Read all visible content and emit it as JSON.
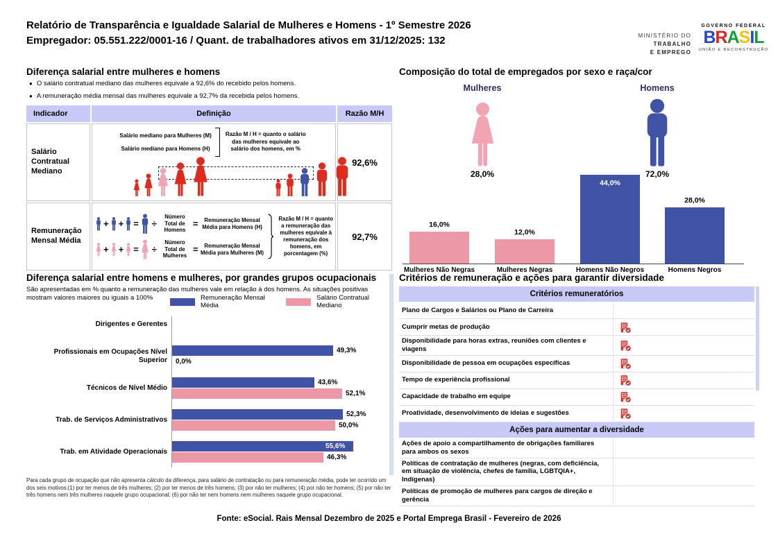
{
  "header": {
    "title_line1": "Relatório de Transparência e Igualdade Salarial de Mulheres e Homens - 1º Semestre 2026",
    "title_line2": "Empregador: 05.551.222/0001-16 / Quant. de trabalhadores ativos em 31/12/2025: 132",
    "ministry": {
      "line1": "MINISTÉRIO DO",
      "line2": "TRABALHO",
      "line3": "E EMPREGO"
    },
    "gov": {
      "top": "GOVERNO FEDERAL",
      "brand": "BRASIL",
      "bottom": "UNIÃO E RECONSTRUÇÃO"
    }
  },
  "salary_diff": {
    "title": "Diferença salarial entre mulheres e homens",
    "bullets": [
      "O salário contratual mediano das mulheres equivale a 92,6% do recebido pelos homens.",
      "A remuneração média mensal das mulheres equivale a 92,7% da recebida pelos homens."
    ],
    "table": {
      "headers": [
        "Indicador",
        "Definição",
        "Razão M/H"
      ],
      "row1": {
        "indicator": "Salário Contratual Mediano",
        "def_line1": "Salário mediano para Mulheres (M)",
        "def_line2": "Salário mediano para Homens (H)",
        "note": "Razão M / H = quanto o salário das mulheres equivale ao salário dos homens, em %",
        "ratio": "92,6%"
      },
      "row2": {
        "indicator": "Remuneração Mensal Média",
        "men_divisor": "Número Total de Homens",
        "men_result": "Remuneração Mensal Média para Homens (H)",
        "women_divisor": "Número Total de Mulheres",
        "women_result": "Remuneração Mensal Média para Mulheres (M)",
        "note": "Razão M / H = quanto a remuneração das mulheres equivale à remuneração dos homens, em porcentagem (%)",
        "ratio": "92,7%"
      }
    }
  },
  "composition": {
    "title": "Composição do total de empregados por sexo e raça/cor",
    "pictograms": [
      {
        "label": "Mulheres",
        "value": "28,0%"
      },
      {
        "label": "Homens",
        "value": "72,0%"
      }
    ]
  },
  "occupational": {
    "title": "Diferença salarial entre homens e mulheres, por grandes grupos ocupacionais",
    "subtitle": "São apresentadas em % quanto a remuneração das mulheres vale em relação à dos homens. As situações positivas mostram valores maiores ou iguais a 100%",
    "footnote": "Para cada grupo de ocupação que não apresenta cálculo da diferença, para salário de contratação ou para remuneração média, pode ter ocorrido um dos seis motivos:(1) por ter menos de três mulheres; (2) por ter menos de três homens; (3) por não ter mulheres; (4) por não ter homens; (5) por não ter três homens nem três mulheres naquele grupo ocupacional; (6) por não ter nem homens nem mulheres naquele grupo ocupacional."
  },
  "chart_data": [
    {
      "type": "bar",
      "title": "Composição do total de empregados por sexo e raça/cor",
      "categories": [
        "Mulheres Não Negras",
        "Mulheres Negras",
        "Homens Não Negros",
        "Homens Negros"
      ],
      "values": [
        16.0,
        12.0,
        44.0,
        28.0
      ],
      "labels": [
        "16,0%",
        "12,0%",
        "44,0%",
        "28,0%"
      ],
      "colors": [
        "pink",
        "pink",
        "blue",
        "blue"
      ],
      "label_inside": [
        false,
        false,
        true,
        false
      ],
      "ylim": [
        0,
        45
      ],
      "unit": "%",
      "grid": false,
      "extra_totals": {
        "Mulheres": 28.0,
        "Homens": 72.0
      }
    },
    {
      "type": "bar",
      "orientation": "horizontal",
      "title": "Diferença salarial entre homens e mulheres, por grandes grupos ocupacionais",
      "categories": [
        "Dirigentes e Gerentes",
        "Profissionais em Ocupações Nível Superior",
        "Técnicos de Nível Médio",
        "Trab. de Serviços Administrativos",
        "Trab. em Atividade Operacionais"
      ],
      "series": [
        {
          "name": "Remuneração Mensal Média",
          "color": "blue",
          "values": [
            null,
            49.3,
            43.6,
            52.3,
            55.6
          ],
          "labels": [
            "",
            "49,3%",
            "43,6%",
            "52,3%",
            "55,6%"
          ],
          "label_inside": [
            false,
            false,
            false,
            false,
            true
          ]
        },
        {
          "name": "Salário Contratual Mediano",
          "color": "pink",
          "values": [
            null,
            0.0,
            52.1,
            50.0,
            46.3
          ],
          "labels": [
            "",
            "0,0%",
            "52,1%",
            "50,0%",
            "46,3%"
          ],
          "label_inside": [
            false,
            false,
            false,
            false,
            false
          ]
        }
      ],
      "xlim": [
        0,
        60
      ],
      "unit": "%",
      "grid": false,
      "legend_position": "top"
    }
  ],
  "criteria": {
    "title": "Critérios de remuneração e ações para garantir diversidade",
    "sections": [
      {
        "header": "Critérios remuneratórios",
        "rows": [
          {
            "label": "Plano de Cargos e Salários ou Plano de Carreira",
            "checked": false
          },
          {
            "label": "Cumprir metas de produção",
            "checked": true
          },
          {
            "label": "Disponibilidade para horas extras, reuniões com clientes e viagens",
            "checked": true
          },
          {
            "label": "Disponibilidade de pessoa em ocupações específicas",
            "checked": true
          },
          {
            "label": "Tempo de experiência profissional",
            "checked": true
          },
          {
            "label": "Capacidade de trabalho em equipe",
            "checked": true
          },
          {
            "label": "Proatividade, desenvolvimento de ideias e sugestões",
            "checked": true
          }
        ]
      },
      {
        "header": "Ações para aumentar a diversidade",
        "rows": [
          {
            "label": "Ações de apoio a compartilhamento de obrigações familiares para ambos os sexos",
            "checked": false
          },
          {
            "label": "Políticas de contratação de mulheres (negras, com deficiência, em situação de violência, chefes de família, LGBTQIA+, Indígenas)",
            "checked": false
          },
          {
            "label": "Políticas de promoção de mulheres para cargos de direção e gerência",
            "checked": false
          }
        ]
      }
    ]
  },
  "footer": "Fonte: eSocial. Rais Mensal Dezembro de 2025 e Portal Emprega Brasil - Fevereiro de 2026",
  "colors": {
    "blue": "#4053A6",
    "pink": "#EC98A7",
    "pink_light": "#F2A4B2",
    "red": "#E02A1E",
    "icon_red": "#D3342F",
    "lavender": "#C9C9F7",
    "navy_label": "#2D2A6E",
    "brand_letters": [
      "#2544D8",
      "#E32119",
      "#0F9E3C",
      "#F8C300",
      "#2544D8",
      "#0F9E3C"
    ]
  }
}
